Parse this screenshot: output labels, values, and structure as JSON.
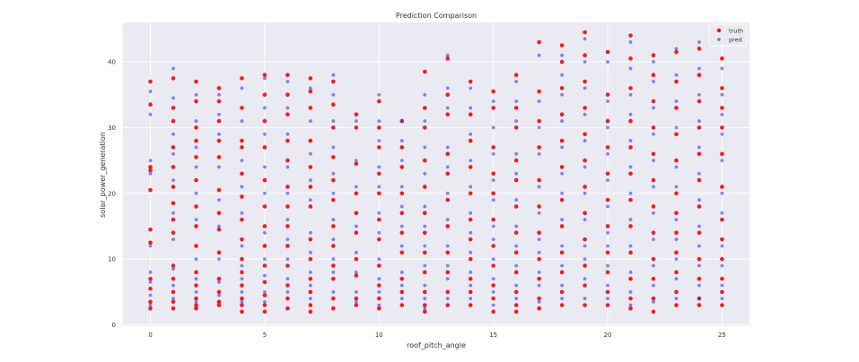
{
  "chart_data": {
    "type": "scatter",
    "title": "Prediction Comparison",
    "xlabel": "roof_pitch_angle",
    "ylabel": "solar_power_generation",
    "xlim": [
      -1.2,
      26.2
    ],
    "ylim": [
      -0.2,
      46
    ],
    "xticks": [
      0,
      5,
      10,
      15,
      20,
      25
    ],
    "yticks": [
      0,
      10,
      20,
      30,
      40
    ],
    "grid": true,
    "legend_position": "top-right",
    "colors": {
      "truth": "#ff0000",
      "pred": "#3333ff",
      "background": "#eaeaf2"
    },
    "series": [
      {
        "name": "truth",
        "points": {
          "0": [
            37,
            33.5,
            24,
            23.5,
            20.5,
            14.5,
            12.5,
            7,
            5.5,
            3.5,
            2.5
          ],
          "1": [
            37.5,
            33,
            31,
            27,
            24,
            21,
            18.5,
            16,
            14,
            9,
            7,
            5,
            3.5,
            2.5
          ],
          "2": [
            37,
            34,
            30,
            28,
            25.5,
            22,
            18,
            15,
            12,
            8,
            6,
            4,
            3,
            2.5
          ],
          "3": [
            36,
            34,
            31,
            28,
            25.5,
            20.5,
            17,
            14.5,
            11,
            7,
            5,
            3.5,
            3
          ],
          "4": [
            37.5,
            33,
            28,
            27,
            23,
            19.5,
            16,
            13,
            10,
            8,
            6,
            4,
            3,
            2
          ],
          "5": [
            38,
            35,
            31,
            27,
            22,
            18,
            15,
            12,
            9,
            6.5,
            4.5,
            3,
            2
          ],
          "6": [
            38,
            35,
            32,
            28,
            25,
            21,
            18,
            15,
            12,
            9,
            6,
            4,
            2.5
          ],
          "7": [
            37.5,
            35.5,
            33,
            28,
            24,
            21,
            18,
            13,
            10,
            7,
            5,
            3,
            2
          ],
          "8": [
            37,
            33.5,
            30,
            25.5,
            22,
            19,
            15,
            12,
            9,
            7,
            4,
            2.5
          ],
          "9": [
            32,
            30,
            24.5,
            20,
            17,
            14,
            10,
            7.5,
            4,
            3
          ],
          "10": [
            34,
            30,
            27,
            23,
            20,
            16,
            13,
            9,
            6,
            4,
            2.5
          ],
          "11": [
            31,
            27,
            24,
            20,
            17,
            14,
            11,
            7,
            5,
            3
          ],
          "12": [
            38.5,
            33,
            30,
            25,
            21,
            17,
            14,
            11,
            8,
            5,
            3,
            2
          ],
          "13": [
            40.5,
            35,
            32,
            26,
            23,
            19,
            15,
            11,
            8,
            5,
            3
          ],
          "14": [
            37,
            32,
            28,
            24,
            20,
            16,
            13,
            10,
            7,
            5,
            3
          ],
          "15": [
            35.5,
            33,
            27,
            23,
            20,
            16,
            12,
            9,
            6,
            4,
            2
          ],
          "16": [
            38,
            33,
            30,
            25,
            22,
            18,
            14,
            11,
            8,
            5,
            3,
            2
          ],
          "17": [
            43,
            35.5,
            31,
            27,
            22,
            18,
            14,
            10,
            7,
            4,
            2.5
          ],
          "18": [
            42.5,
            40,
            36,
            32,
            28,
            24,
            19,
            15,
            11,
            8,
            5,
            3
          ],
          "19": [
            44.5,
            41,
            37,
            33,
            29,
            25,
            21,
            17,
            13,
            9,
            6,
            3
          ],
          "20": [
            41.5,
            35,
            31,
            27,
            23,
            19,
            15,
            11,
            8,
            5,
            3
          ],
          "21": [
            44,
            40.5,
            36,
            31,
            27,
            23,
            19,
            15,
            11,
            7,
            4,
            2.5
          ],
          "22": [
            41,
            38,
            34,
            30,
            26,
            22,
            18,
            14,
            10,
            7,
            4,
            2
          ],
          "23": [
            41.5,
            37,
            33,
            29,
            25,
            20,
            17,
            14,
            11,
            8,
            5,
            3
          ],
          "24": [
            42,
            38,
            34,
            30,
            26,
            22,
            18,
            14,
            10,
            7,
            4,
            3
          ],
          "25": [
            40.5,
            36,
            33,
            30,
            26,
            21,
            16,
            13,
            10,
            7,
            5,
            3
          ]
        }
      },
      {
        "name": "pred",
        "points": {
          "0": [
            35.5,
            32,
            25,
            23,
            12,
            8,
            6.5,
            4.5,
            3
          ],
          "1": [
            39,
            34.5,
            29,
            26,
            22,
            17,
            13,
            8.5,
            6,
            4
          ],
          "2": [
            35,
            31,
            27,
            24,
            20,
            16,
            10,
            7,
            5,
            3.5
          ],
          "3": [
            35,
            32,
            29,
            24,
            19,
            15,
            10,
            6.5,
            4.5
          ],
          "4": [
            36,
            31,
            25,
            21,
            17,
            12,
            9,
            7,
            5,
            3.5
          ],
          "5": [
            37.5,
            33,
            29,
            24,
            20,
            14,
            10,
            7.5,
            5,
            3.5
          ],
          "6": [
            37,
            33,
            29,
            24,
            20,
            16,
            13,
            10,
            7,
            5
          ],
          "7": [
            36,
            31,
            26,
            22,
            19,
            14,
            11,
            8,
            6,
            4
          ],
          "8": [
            38,
            35,
            31,
            27,
            23,
            20,
            16,
            13,
            10,
            8,
            5
          ],
          "9": [
            31,
            25,
            21,
            15,
            11,
            8,
            5,
            3.5
          ],
          "10": [
            35,
            31,
            28,
            24,
            21,
            17,
            14,
            10,
            7,
            5,
            3
          ],
          "11": [
            31,
            28,
            25,
            21,
            18,
            15,
            12,
            8,
            6,
            4
          ],
          "12": [
            35,
            31,
            27,
            23,
            18,
            15,
            12,
            9,
            6,
            4,
            2.5
          ],
          "13": [
            41,
            36,
            33,
            27,
            24,
            20,
            16,
            12,
            9,
            7,
            4
          ],
          "14": [
            36,
            33,
            29,
            25,
            21,
            17,
            14,
            11,
            8,
            6,
            4
          ],
          "15": [
            34,
            30,
            26,
            22,
            19,
            15,
            13,
            10,
            7,
            5,
            3
          ],
          "16": [
            37,
            34,
            31,
            26,
            23,
            19,
            15,
            12,
            9,
            6,
            4
          ],
          "17": [
            41,
            34,
            30,
            26,
            21,
            17,
            13,
            11,
            8,
            6,
            3.5
          ],
          "18": [
            41,
            38,
            35,
            31,
            27,
            23,
            20,
            16,
            12,
            9,
            6,
            4
          ],
          "19": [
            43.5,
            40,
            36,
            32,
            28,
            24,
            20,
            16,
            12,
            10,
            7,
            4
          ],
          "20": [
            40,
            34,
            30,
            26,
            22,
            18,
            14,
            12,
            9,
            6,
            4
          ],
          "21": [
            43,
            39,
            35,
            32,
            28,
            24,
            20,
            16,
            12,
            8,
            5,
            3
          ],
          "22": [
            40,
            37,
            33,
            29,
            25,
            21,
            17,
            13,
            9,
            6,
            3.5
          ],
          "23": [
            42,
            38,
            34,
            30,
            24,
            21,
            16,
            13,
            10,
            7,
            4
          ],
          "24": [
            43,
            39,
            35,
            31,
            27,
            23,
            19,
            15,
            12,
            9,
            6,
            4
          ],
          "25": [
            39,
            35,
            32,
            29,
            25,
            20,
            17,
            12,
            9,
            6,
            4
          ]
        }
      }
    ]
  }
}
